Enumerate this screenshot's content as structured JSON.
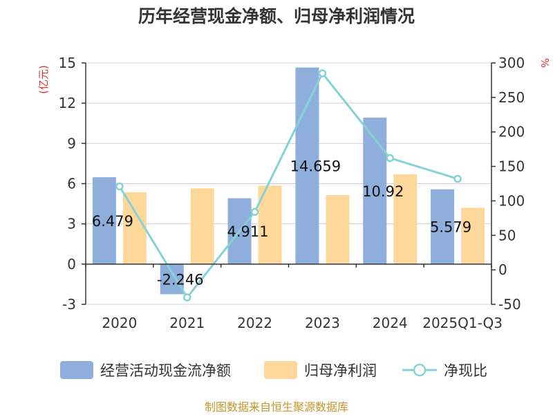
{
  "chart_data": {
    "type": "bar",
    "title": "历年经营现金净额、归母净利润情况",
    "categories": [
      "2020",
      "2021",
      "2022",
      "2023",
      "2024",
      "2025Q1-Q3"
    ],
    "series": [
      {
        "name": "经营活动现金流净额",
        "type": "bar",
        "axis": "left",
        "color": "#8eaedc",
        "values": [
          6.479,
          -2.246,
          4.911,
          14.659,
          10.92,
          5.579
        ],
        "labels": [
          "6.479",
          "-2.246",
          "4.911",
          "14.659",
          "10.92",
          "5.579"
        ]
      },
      {
        "name": "归母净利润",
        "type": "bar",
        "axis": "left",
        "color": "#fdd89a",
        "values": [
          5.35,
          5.65,
          5.85,
          5.15,
          6.7,
          4.2
        ]
      },
      {
        "name": "净现比",
        "type": "line",
        "axis": "right",
        "color": "#85d2d6",
        "values": [
          121,
          -40,
          84,
          285,
          162,
          132
        ]
      }
    ],
    "y_left": {
      "unit": "(亿元)",
      "min": -3,
      "max": 15,
      "ticks": [
        "15",
        "12",
        "9",
        "6",
        "3",
        "0",
        "-3"
      ]
    },
    "y_right": {
      "unit": "%",
      "min": -50,
      "max": 300,
      "ticks": [
        "300",
        "250",
        "200",
        "150",
        "100",
        "50",
        "0",
        "-50"
      ]
    },
    "grid": true,
    "legend_position": "bottom"
  },
  "footer": {
    "source": "制图数据来自恒生聚源数据库"
  }
}
